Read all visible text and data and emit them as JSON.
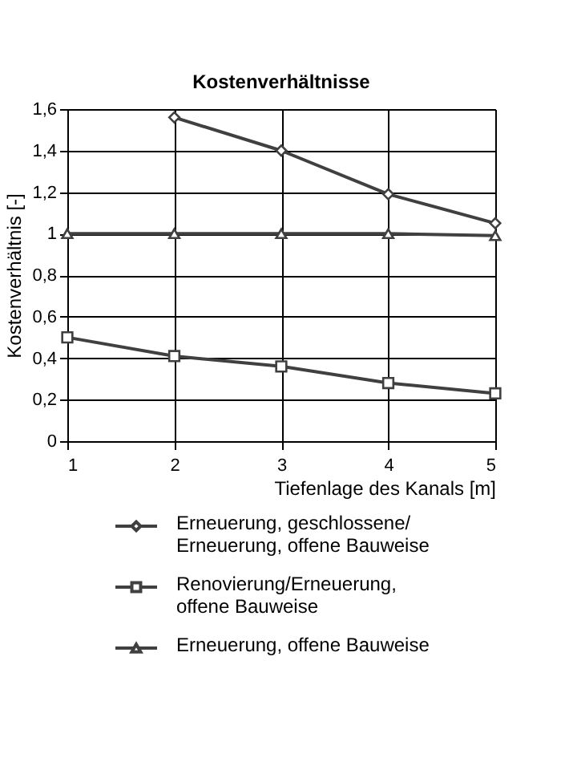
{
  "chart_data": {
    "type": "line",
    "title": "Kostenverhältnisse",
    "xlabel": "Tiefenlage des Kanals [m]",
    "ylabel": "Kostenverhältnis  [-]",
    "x": [
      1,
      2,
      3,
      4,
      5
    ],
    "series": [
      {
        "name": "Erneuerung, geschlossene/\nErneuerung, offene Bauweise",
        "color": "#404040",
        "marker": "diamond",
        "values": [
          null,
          1.56,
          1.4,
          1.19,
          1.05
        ]
      },
      {
        "name": "Renovierung/Erneuerung,\noffene Bauweise",
        "color": "#404040",
        "marker": "square",
        "values": [
          0.5,
          0.41,
          0.36,
          0.28,
          0.23
        ]
      },
      {
        "name": "Erneuerung, offene Bauweise",
        "color": "#404040",
        "marker": "triangle",
        "values": [
          1.0,
          1.0,
          1.0,
          1.0,
          0.99
        ]
      }
    ],
    "xlim": [
      1,
      5
    ],
    "xticks": [
      1,
      2,
      3,
      4,
      5
    ],
    "ylim": [
      0,
      1.6
    ],
    "yticks": [
      0,
      {
        "value": 0.2,
        "label": "0,2"
      },
      {
        "value": 0.4,
        "label": "0,4"
      },
      {
        "value": 0.6,
        "label": "0,6"
      },
      {
        "value": 0.8,
        "label": "0,8"
      },
      1,
      {
        "value": 1.2,
        "label": "1,2"
      },
      {
        "value": 1.4,
        "label": "1,4"
      },
      {
        "value": 1.6,
        "label": "1,6"
      }
    ],
    "grid": true,
    "legend": "bottom",
    "line_style": "solid"
  }
}
